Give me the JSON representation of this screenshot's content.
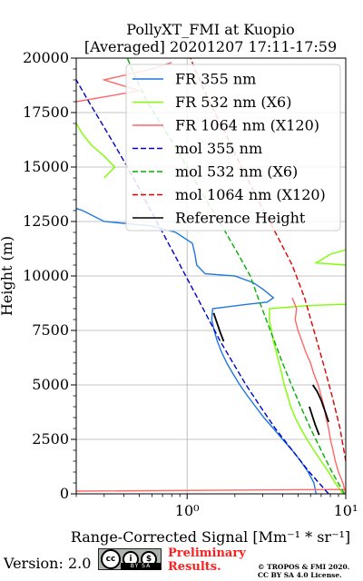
{
  "chart_data": {
    "type": "line",
    "title": [
      "PollyXT_FMI at Kuopio",
      "[Averaged] 20201207 17:11-17:59"
    ],
    "xlabel": "Range-Corrected Signal [Mm⁻¹ * sr⁻¹]",
    "ylabel": "Height (m)",
    "xscale": "log",
    "xlim": [
      0.2,
      10
    ],
    "ylim": [
      0,
      20000
    ],
    "x_ticks": [
      {
        "value": 1,
        "label": "10⁰"
      },
      {
        "value": 10,
        "label": "10¹"
      }
    ],
    "y_ticks": [
      0,
      2500,
      5000,
      7500,
      10000,
      12500,
      15000,
      17500,
      20000
    ],
    "y_tick_labels": [
      "0",
      "2500",
      "5000",
      "7500",
      "10000",
      "12500",
      "15000",
      "17500",
      "20000"
    ],
    "grid": true,
    "legend_position": "upper right",
    "series": [
      {
        "name": "FR 355 nm",
        "color": "#1f77e0",
        "style": "solid",
        "points": [
          [
            6.5,
            0
          ],
          [
            6.3,
            500
          ],
          [
            5.8,
            1000
          ],
          [
            5.2,
            1500
          ],
          [
            4.6,
            2000
          ],
          [
            4.0,
            2500
          ],
          [
            3.5,
            3000
          ],
          [
            3.05,
            3500
          ],
          [
            2.7,
            4000
          ],
          [
            2.4,
            4500
          ],
          [
            2.15,
            5000
          ],
          [
            1.95,
            5500
          ],
          [
            1.78,
            6000
          ],
          [
            1.65,
            6500
          ],
          [
            1.55,
            7000
          ],
          [
            1.48,
            7500
          ],
          [
            1.43,
            8000
          ],
          [
            1.45,
            8500
          ],
          [
            2.4,
            8700
          ],
          [
            3.2,
            8800
          ],
          [
            3.5,
            9000
          ],
          [
            3.0,
            9400
          ],
          [
            2.6,
            9700
          ],
          [
            2.0,
            10000
          ],
          [
            1.3,
            10100
          ],
          [
            1.15,
            10500
          ],
          [
            1.12,
            11000
          ],
          [
            1.08,
            11500
          ],
          [
            0.85,
            12000
          ],
          [
            0.6,
            12300
          ],
          [
            0.3,
            12500
          ],
          [
            0.22,
            13000
          ],
          [
            0.2,
            13100
          ]
        ]
      },
      {
        "name": "FR 532 nm (X6)",
        "color": "#7fff00",
        "style": "solid",
        "points": [
          [
            9.6,
            0
          ],
          [
            8.6,
            500
          ],
          [
            7.8,
            1000
          ],
          [
            7.0,
            1500
          ],
          [
            6.3,
            2000
          ],
          [
            5.7,
            2500
          ],
          [
            5.2,
            3000
          ],
          [
            4.8,
            3500
          ],
          [
            4.5,
            4000
          ],
          [
            4.3,
            4500
          ],
          [
            4.1,
            5000
          ],
          [
            3.95,
            5500
          ],
          [
            3.8,
            6000
          ],
          [
            3.65,
            6500
          ],
          [
            3.5,
            7000
          ],
          [
            3.4,
            7500
          ],
          [
            3.3,
            8000
          ],
          [
            3.3,
            8500
          ],
          [
            6.0,
            8650
          ],
          [
            10.0,
            8700
          ],
          [
            null,
            null
          ],
          [
            10.0,
            10500
          ],
          [
            6.5,
            10600
          ],
          [
            8.0,
            11000
          ],
          [
            10.0,
            11200
          ],
          [
            null,
            null
          ],
          [
            0.3,
            14500
          ],
          [
            0.35,
            15000
          ],
          [
            0.3,
            15500
          ],
          [
            0.25,
            16000
          ],
          [
            0.22,
            16500
          ],
          [
            0.2,
            17000
          ]
        ]
      },
      {
        "name": "FR 1064 nm (X120)",
        "color": "#ff6666",
        "style": "solid",
        "points": [
          [
            10.0,
            0
          ],
          [
            9.6,
            500
          ],
          [
            9.0,
            1000
          ],
          [
            8.6,
            1500
          ],
          [
            8.3,
            2000
          ],
          [
            8.0,
            2500
          ],
          [
            7.8,
            3000
          ],
          [
            7.5,
            3500
          ],
          [
            7.3,
            4000
          ],
          [
            7.0,
            4500
          ],
          [
            6.7,
            5000
          ],
          [
            6.3,
            5500
          ],
          [
            6.0,
            6000
          ],
          [
            5.6,
            6500
          ],
          [
            5.3,
            7000
          ],
          [
            5.0,
            7500
          ],
          [
            4.8,
            8000
          ],
          [
            4.9,
            8500
          ],
          [
            4.6,
            9000
          ],
          [
            null,
            null
          ],
          [
            0.2,
            18000
          ],
          [
            0.5,
            18500
          ],
          [
            0.3,
            19000
          ],
          [
            0.6,
            19500
          ],
          [
            0.8,
            19800
          ],
          [
            null,
            null
          ],
          [
            0.2,
            125
          ],
          [
            10.0,
            200
          ]
        ]
      },
      {
        "name": "mol 355 nm",
        "color": "#0000cc",
        "style": "dashed",
        "points": [
          [
            7.8,
            0
          ],
          [
            5.9,
            1000
          ],
          [
            4.6,
            2000
          ],
          [
            3.6,
            3000
          ],
          [
            2.9,
            4000
          ],
          [
            2.35,
            5000
          ],
          [
            1.95,
            6000
          ],
          [
            1.62,
            7000
          ],
          [
            1.37,
            8000
          ],
          [
            1.16,
            9000
          ],
          [
            0.98,
            10000
          ],
          [
            0.83,
            11000
          ],
          [
            0.7,
            12000
          ],
          [
            0.59,
            13000
          ],
          [
            0.5,
            14000
          ],
          [
            0.42,
            15000
          ],
          [
            0.35,
            16000
          ],
          [
            0.29,
            17000
          ],
          [
            0.24,
            18000
          ],
          [
            0.2,
            19000
          ]
        ]
      },
      {
        "name": "mol 532 nm (X6)",
        "color": "#00b000",
        "style": "dashed",
        "points": [
          [
            9.8,
            0
          ],
          [
            8.2,
            1000
          ],
          [
            7.0,
            2000
          ],
          [
            6.0,
            3000
          ],
          [
            5.2,
            4000
          ],
          [
            4.55,
            5000
          ],
          [
            4.0,
            6000
          ],
          [
            3.55,
            7000
          ],
          [
            3.15,
            8000
          ],
          [
            2.8,
            9000
          ],
          [
            2.5,
            10000
          ],
          [
            2.1,
            11000
          ],
          [
            1.75,
            12000
          ],
          [
            1.45,
            13000
          ],
          [
            1.2,
            14000
          ],
          [
            1.0,
            15000
          ],
          [
            0.83,
            16000
          ],
          [
            0.68,
            17000
          ],
          [
            0.56,
            18000
          ],
          [
            0.48,
            19000
          ],
          [
            0.42,
            20000
          ]
        ]
      },
      {
        "name": "mol 1064 nm (X120)",
        "color": "#e00000",
        "style": "dashed",
        "points": [
          [
            10.0,
            1500
          ],
          [
            9.2,
            3000
          ],
          [
            8.2,
            4500
          ],
          [
            7.2,
            6000
          ],
          [
            6.3,
            7500
          ],
          [
            5.5,
            9000
          ],
          [
            4.6,
            10500
          ],
          [
            3.6,
            12000
          ],
          [
            2.8,
            13500
          ],
          [
            2.2,
            15000
          ],
          [
            1.75,
            16500
          ],
          [
            1.38,
            18000
          ],
          [
            1.12,
            19500
          ],
          [
            1.05,
            20000
          ]
        ]
      },
      {
        "name": "Reference Height",
        "color": "#000000",
        "style": "solid",
        "points": [
          [
            1.47,
            8300
          ],
          [
            1.55,
            7800
          ],
          [
            1.62,
            7400
          ],
          [
            1.7,
            7000
          ],
          [
            null,
            null
          ],
          [
            5.9,
            4000
          ],
          [
            6.4,
            3200
          ],
          [
            6.8,
            2700
          ],
          [
            null,
            null
          ],
          [
            6.2,
            5000
          ],
          [
            6.6,
            4700
          ],
          [
            7.0,
            4300
          ],
          [
            7.4,
            3800
          ],
          [
            7.8,
            3300
          ]
        ]
      }
    ]
  },
  "footer": {
    "version": "Version: 2.0",
    "cc_symbols": [
      "cc",
      "i",
      "$"
    ],
    "cc_strip": "BY SA",
    "preliminary_line1": "Preliminary",
    "preliminary_line2": "Results.",
    "copyright_line1": "© TROPOS & FMI 2020.",
    "copyright_line2": "CC BY SA 4.0 License."
  }
}
